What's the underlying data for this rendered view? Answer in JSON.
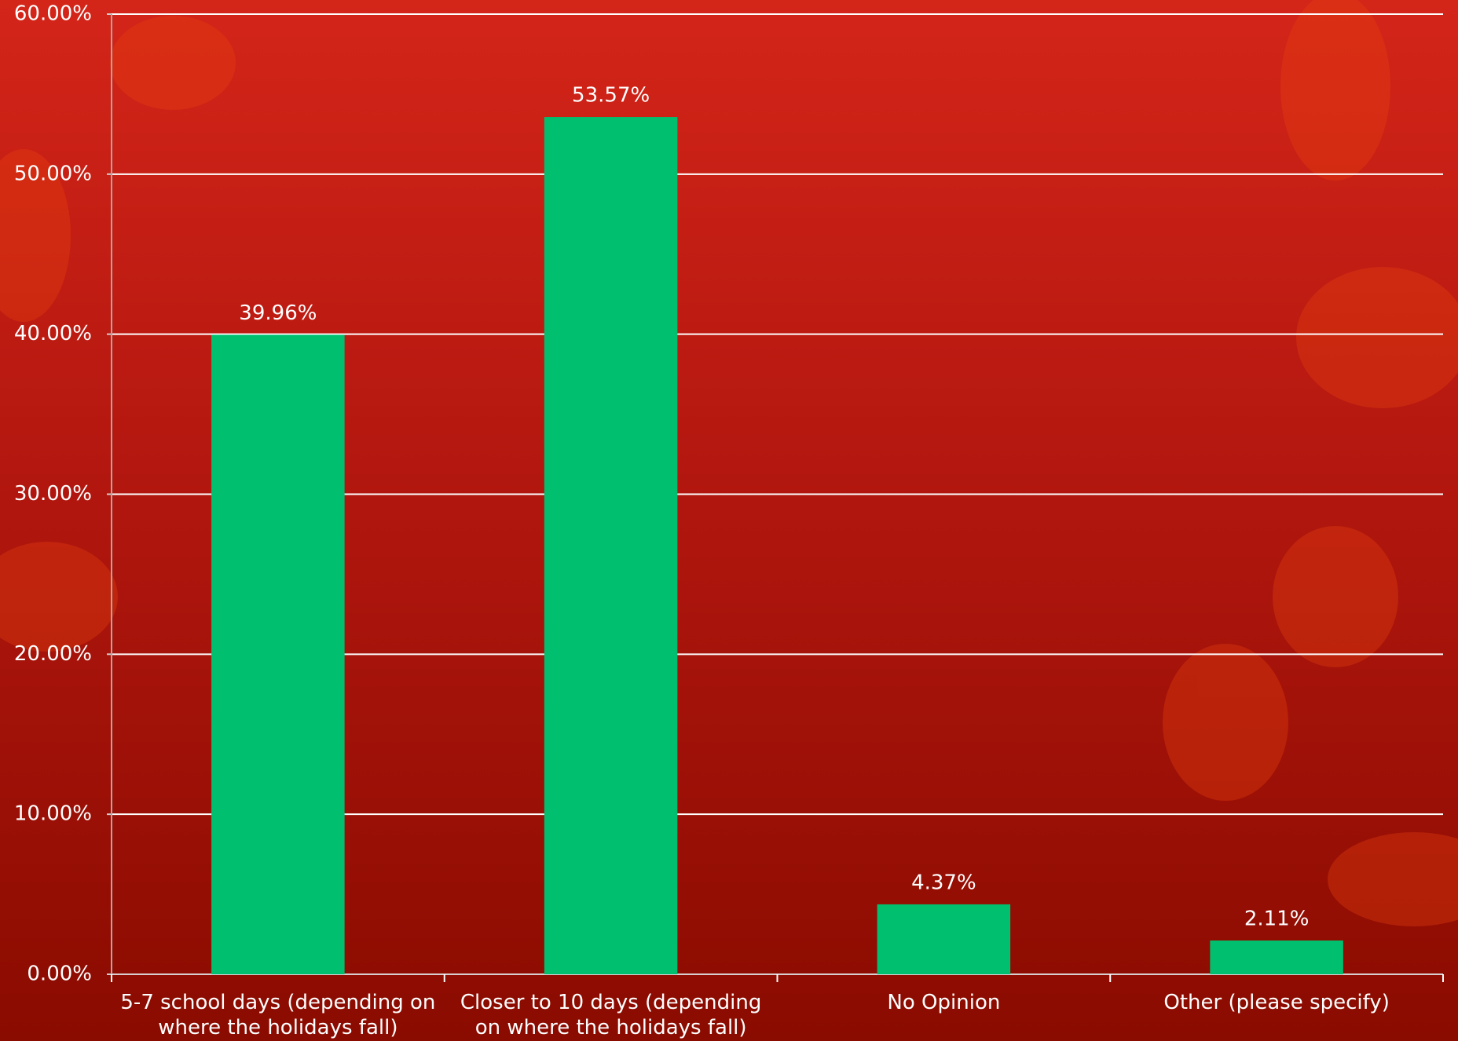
{
  "chart_data": {
    "type": "bar",
    "categories": [
      "5-7 school days (depending on where the holidays fall)",
      "Closer to 10 days (depending on where the holidays fall)",
      "No Opinion",
      "Other (please specify)"
    ],
    "values": [
      39.96,
      53.57,
      4.37,
      2.11
    ],
    "value_labels": [
      "39.96%",
      "53.57%",
      "4.37%",
      "2.11%"
    ],
    "color": "#00bf6f",
    "ylim": [
      0,
      60
    ],
    "yticks": [
      {
        "value": 0,
        "label": "0.00%"
      },
      {
        "value": 10,
        "label": "10.00%"
      },
      {
        "value": 20,
        "label": "20.00%"
      },
      {
        "value": 30,
        "label": "30.00%"
      },
      {
        "value": 40,
        "label": "40.00%"
      },
      {
        "value": 50,
        "label": "50.00%"
      },
      {
        "value": 60,
        "label": "60.00%"
      }
    ],
    "grid": true
  }
}
